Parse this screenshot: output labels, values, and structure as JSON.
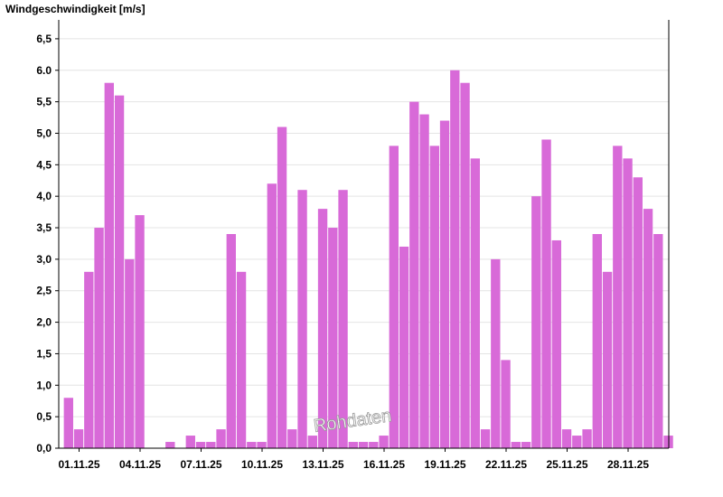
{
  "chart_data": {
    "type": "bar",
    "ylabel": "Windgeschwindigkeit [m/s]",
    "ylim": [
      0,
      6.8
    ],
    "yticks": [
      "0,0",
      "0,5",
      "1,0",
      "1,5",
      "2,0",
      "2,5",
      "3,0",
      "3,5",
      "4,0",
      "4,5",
      "5,0",
      "5,5",
      "6.0",
      "6,5"
    ],
    "yticks_values": [
      0,
      0.5,
      1,
      1.5,
      2,
      2.5,
      3,
      3.5,
      4,
      4.5,
      5,
      5.5,
      6,
      6.5
    ],
    "xlim": [
      -0.5,
      29.5
    ],
    "xticks": [
      "01.11.25",
      "04.11.25",
      "07.11.25",
      "10.11.25",
      "13.11.25",
      "16.11.25",
      "19.11.25",
      "22.11.25",
      "25.11.25",
      "28.11.25"
    ],
    "xticks_values": [
      0.5,
      3.5,
      6.5,
      9.5,
      12.5,
      15.5,
      18.5,
      21.5,
      24.5,
      27.5
    ],
    "bar_color": "#d86ad8",
    "grid": true,
    "watermark": "Rohdaten",
    "series": [
      {
        "x": [
          0.0,
          0.5,
          1.0,
          1.5,
          2.0,
          2.5,
          3.0,
          3.5,
          4.0,
          4.5,
          5.0,
          5.5,
          6.0,
          6.5,
          7.0,
          7.5,
          8.0,
          8.5,
          9.0,
          9.5,
          10.0,
          10.5,
          11.0,
          11.5,
          12.0,
          12.5,
          13.0,
          13.5,
          14.0,
          14.5,
          15.0,
          15.5,
          16.0,
          16.5,
          17.0,
          17.5,
          18.0,
          18.5,
          19.0,
          19.5,
          20.0,
          20.5,
          21.0,
          21.5,
          22.0,
          22.5,
          23.0,
          23.5,
          24.0,
          24.5,
          25.0,
          25.5,
          26.0,
          26.5,
          27.0,
          27.5,
          28.0,
          28.5,
          29.0,
          29.5
        ],
        "values": [
          0.8,
          0.3,
          2.8,
          3.5,
          5.8,
          5.6,
          3.0,
          3.7,
          0.0,
          0.0,
          0.1,
          0.0,
          0.2,
          0.1,
          0.1,
          0.3,
          3.4,
          2.8,
          0.1,
          0.1,
          4.2,
          5.1,
          0.3,
          4.1,
          0.2,
          3.8,
          3.5,
          4.1,
          0.1,
          0.1,
          0.1,
          0.2,
          4.8,
          3.2,
          5.5,
          5.3,
          4.8,
          5.2,
          6.0,
          5.8,
          4.6,
          0.3,
          3.0,
          1.4,
          0.1,
          0.1,
          4.0,
          4.9,
          3.3,
          0.3,
          0.2,
          0.3,
          3.4,
          2.8,
          4.8,
          4.6,
          4.3,
          3.8,
          3.4,
          0.2
        ]
      }
    ]
  }
}
